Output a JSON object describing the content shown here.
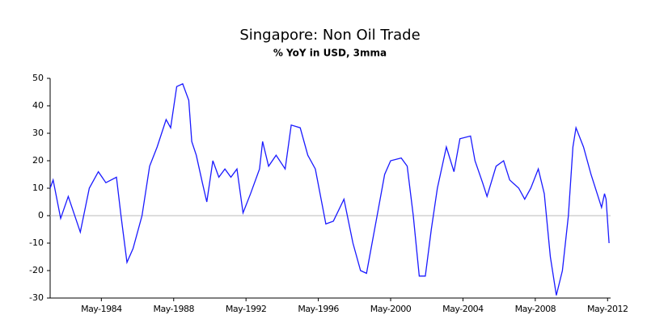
{
  "chart_data": {
    "type": "line",
    "title": "Singapore: Non Oil Trade",
    "subtitle": "% YoY in USD, 3mma",
    "color": "#1a1aff",
    "x": [
      "1981-07",
      "1981-09",
      "1982-02",
      "1982-07",
      "1983-03",
      "1983-09",
      "1984-03",
      "1984-08",
      "1985-03",
      "1985-06",
      "1985-10",
      "1986-02",
      "1986-08",
      "1987-01",
      "1987-06",
      "1987-12",
      "1988-03",
      "1988-07",
      "1988-11",
      "1989-03",
      "1989-05",
      "1989-08",
      "1989-12",
      "1990-03",
      "1990-07",
      "1990-11",
      "1991-03",
      "1991-07",
      "1991-11",
      "1992-03",
      "1992-08",
      "1993-02",
      "1993-04",
      "1993-08",
      "1994-01",
      "1994-07",
      "1994-11",
      "1995-05",
      "1995-10",
      "1996-03",
      "1996-10",
      "1997-03",
      "1997-10",
      "1998-04",
      "1998-09",
      "1999-01",
      "1999-08",
      "2000-01",
      "2000-05",
      "2000-12",
      "2001-04",
      "2001-08",
      "2001-12",
      "2002-04",
      "2002-08",
      "2002-12",
      "2003-04",
      "2003-06",
      "2003-11",
      "2004-03",
      "2004-10",
      "2005-01",
      "2005-06",
      "2005-09",
      "2006-03",
      "2006-08",
      "2006-12",
      "2007-06",
      "2007-10",
      "2008-02",
      "2008-07",
      "2008-11",
      "2009-03",
      "2009-07",
      "2009-11",
      "2010-03",
      "2010-06",
      "2010-08",
      "2011-01",
      "2011-06",
      "2012-01",
      "2012-03",
      "2012-04",
      "2012-06"
    ],
    "values": [
      10,
      13,
      -1,
      7,
      -6,
      10,
      16,
      12,
      14,
      0,
      -17,
      -12,
      0,
      18,
      25,
      35,
      32,
      47,
      48,
      42,
      27,
      22,
      12,
      5,
      20,
      14,
      17,
      14,
      17,
      1,
      8,
      17,
      27,
      18,
      22,
      17,
      33,
      32,
      22,
      17,
      -3,
      -2,
      6,
      -10,
      -20,
      -21,
      0,
      15,
      20,
      21,
      18,
      0,
      -22,
      -22,
      -5,
      10,
      20,
      25,
      16,
      28,
      29,
      20,
      12,
      7,
      18,
      20,
      13,
      10,
      6,
      10,
      17,
      8,
      -15,
      -29,
      -20,
      0,
      25,
      32,
      25,
      15,
      3,
      8,
      6,
      -10
    ],
    "xlim": [
      "1981-07",
      "2012-07"
    ],
    "xticks": [
      {
        "value": "1984-05",
        "label": "May-1984"
      },
      {
        "value": "1988-05",
        "label": "May-1988"
      },
      {
        "value": "1992-05",
        "label": "May-1992"
      },
      {
        "value": "1996-05",
        "label": "May-1996"
      },
      {
        "value": "2000-05",
        "label": "May-2000"
      },
      {
        "value": "2004-05",
        "label": "May-2004"
      },
      {
        "value": "2008-05",
        "label": "May-2008"
      },
      {
        "value": "2012-05",
        "label": "May-2012"
      }
    ],
    "ylim": [
      -30,
      50
    ],
    "yticks": [
      -30,
      -20,
      -10,
      0,
      10,
      20,
      30,
      40,
      50
    ],
    "grid": false
  }
}
